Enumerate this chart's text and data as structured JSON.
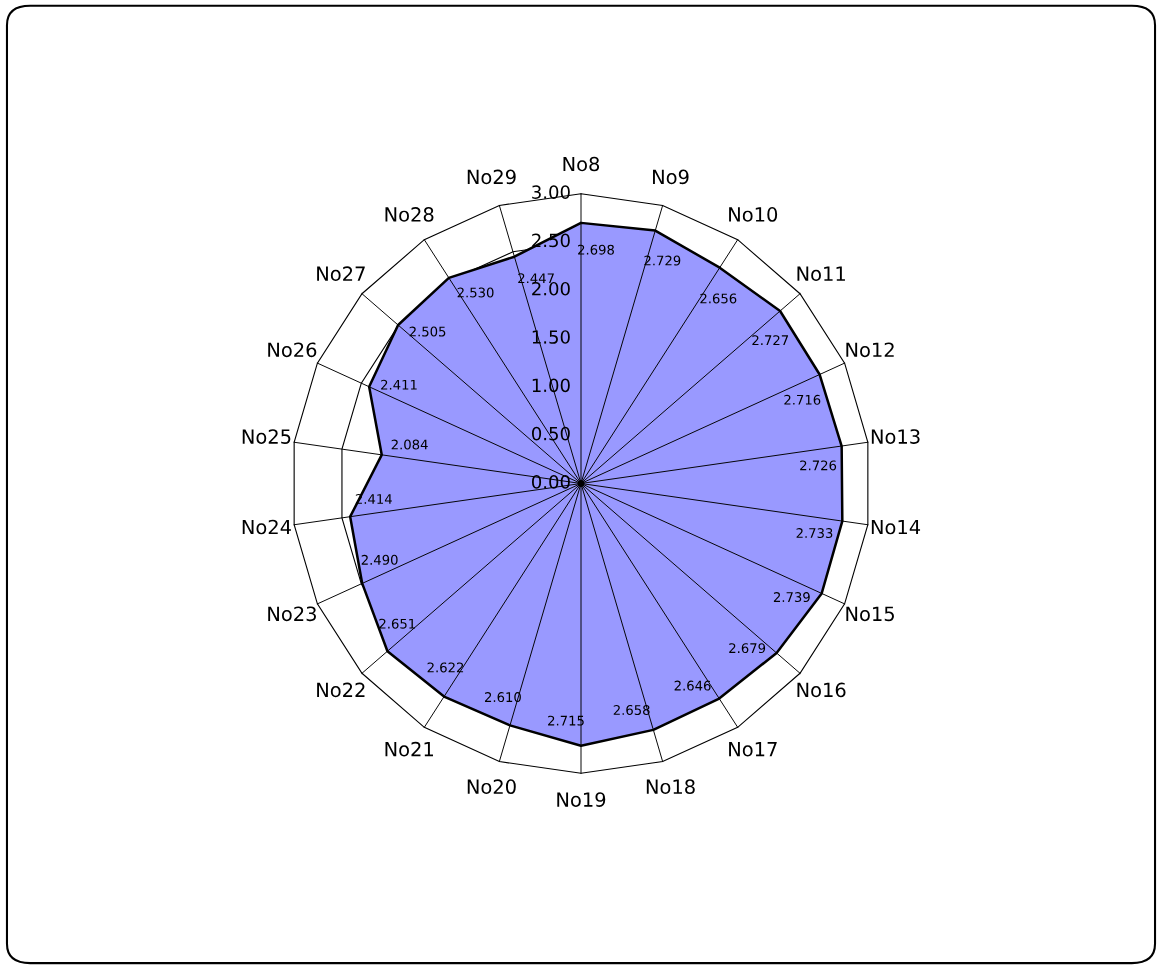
{
  "chart_data": {
    "type": "radar",
    "categories": [
      "No8",
      "No9",
      "No10",
      "No11",
      "No12",
      "No13",
      "No14",
      "No15",
      "No16",
      "No17",
      "No18",
      "No19",
      "No20",
      "No21",
      "No22",
      "No23",
      "No24",
      "No25",
      "No26",
      "No27",
      "No28",
      "No29"
    ],
    "series": [
      {
        "color": "#9999ff",
        "values": [
          2.698,
          2.729,
          2.656,
          2.727,
          2.716,
          2.726,
          2.733,
          2.739,
          2.679,
          2.646,
          2.658,
          2.715,
          2.61,
          2.622,
          2.651,
          2.49,
          2.414,
          2.084,
          2.411,
          2.505,
          2.53,
          2.447
        ]
      }
    ],
    "ylim": [
      0,
      3
    ],
    "yticks": [
      {
        "value": 0,
        "label": "0.00"
      },
      {
        "value": 0.5,
        "label": "0.50"
      },
      {
        "value": 1,
        "label": "1.00"
      },
      {
        "value": 1.5,
        "label": "1.50"
      },
      {
        "value": 2,
        "label": "2.00"
      },
      {
        "value": 2.5,
        "label": "2.50"
      },
      {
        "value": 3,
        "label": "3.00"
      }
    ],
    "value_labels": [
      "2.698",
      "2.729",
      "2.656",
      "2.727",
      "2.716",
      "2.726",
      "2.733",
      "2.739",
      "2.679",
      "2.646",
      "2.658",
      "2.715",
      "2.610",
      "2.622",
      "2.651",
      "2.490",
      "2.414",
      "2.084",
      "2.411",
      "2.505",
      "2.530",
      "2.447"
    ]
  }
}
